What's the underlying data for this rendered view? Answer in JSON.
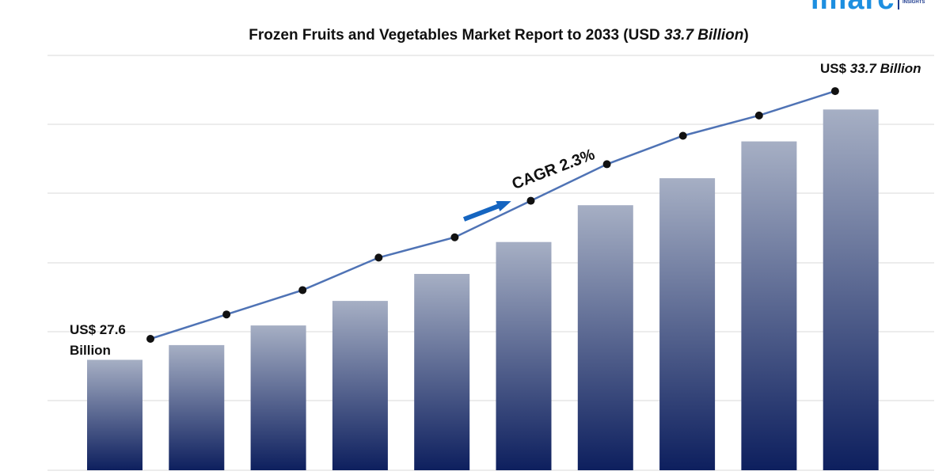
{
  "chart_data": {
    "type": "bar",
    "title_prefix": "Frozen Fruits and Vegetables Market Report to 2033 (USD ",
    "title_italic": "33.7 Billion",
    "title_suffix": ")",
    "categories": [
      "",
      "",
      "",
      "",
      "",
      "",
      "",
      "",
      "",
      ""
    ],
    "values": [
      27.6,
      28.2,
      29.0,
      30.0,
      31.1,
      32.4,
      33.9,
      35.0,
      36.5,
      37.8
    ],
    "line_values": [
      27.6,
      28.2,
      28.8,
      29.6,
      30.1,
      31.0,
      31.9,
      32.6,
      33.1,
      33.7
    ],
    "bar_color_top": "#a6afc4",
    "bar_color_bottom": "#0d1f5e",
    "line_color": "#4f73b5",
    "marker_color": "#111111",
    "grid": true,
    "annotations": {
      "start_label_line1": "US$ 27.6",
      "start_label_line2": "Billion",
      "end_label_prefix": "US$ ",
      "end_label_italic": "33.7 Billion",
      "cagr": "CAGR 2.3%",
      "arrow_color": "#1565c0"
    }
  },
  "brand": {
    "logo_text": "imarc",
    "logo_tag": "INSIGHTS"
  }
}
